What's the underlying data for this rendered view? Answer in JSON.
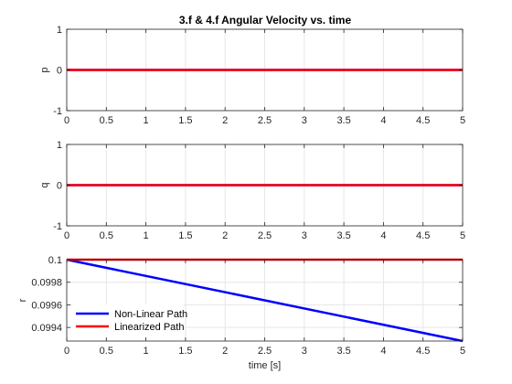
{
  "colors": {
    "background": "#ffffff",
    "axes_frame": "#262626",
    "grid": "#e6e6e6",
    "nonlinear": "#0000ff",
    "linearized": "#ff0000"
  },
  "chart_data": [
    {
      "type": "line",
      "title": "3.f & 4.f Angular Velocity vs. time",
      "xlabel": "",
      "ylabel": "p",
      "xlim": [
        0,
        5
      ],
      "ylim": [
        -1,
        1
      ],
      "xticks": [
        "0",
        "0.5",
        "1",
        "1.5",
        "2",
        "2.5",
        "3",
        "3.5",
        "4",
        "4.5",
        "5"
      ],
      "yticks": [
        "-1",
        "0",
        "1"
      ],
      "grid": true,
      "series": [
        {
          "x": [
            0,
            5
          ],
          "y": [
            0,
            0
          ],
          "color": "#0000ff"
        },
        {
          "x": [
            0,
            5
          ],
          "y": [
            0,
            0
          ],
          "color": "#ff0000"
        }
      ]
    },
    {
      "type": "line",
      "title": "",
      "xlabel": "",
      "ylabel": "q",
      "xlim": [
        0,
        5
      ],
      "ylim": [
        -1,
        1
      ],
      "xticks": [
        "0",
        "0.5",
        "1",
        "1.5",
        "2",
        "2.5",
        "3",
        "3.5",
        "4",
        "4.5",
        "5"
      ],
      "yticks": [
        "-1",
        "0",
        "1"
      ],
      "grid": true,
      "series": [
        {
          "x": [
            0,
            5
          ],
          "y": [
            0,
            0
          ],
          "color": "#0000ff"
        },
        {
          "x": [
            0,
            5
          ],
          "y": [
            0,
            0
          ],
          "color": "#ff0000"
        }
      ]
    },
    {
      "type": "line",
      "title": "",
      "xlabel": "time [s]",
      "ylabel": "r",
      "xlim": [
        0,
        5
      ],
      "ylim": [
        0.09928,
        0.1
      ],
      "xticks": [
        "0",
        "0.5",
        "1",
        "1.5",
        "2",
        "2.5",
        "3",
        "3.5",
        "4",
        "4.5",
        "5"
      ],
      "yticks": [
        "0.0994",
        "0.0996",
        "0.0998",
        "0.1"
      ],
      "ytick_values": [
        0.0994,
        0.0996,
        0.0998,
        0.1
      ],
      "grid": true,
      "legend": "bottom-left",
      "series": [
        {
          "name": "Non-Linear Path",
          "x": [
            0,
            5
          ],
          "y": [
            0.1,
            0.09928
          ],
          "color": "#0000ff"
        },
        {
          "name": "Linearized Path",
          "x": [
            0,
            5
          ],
          "y": [
            0.1,
            0.1
          ],
          "color": "#ff0000"
        }
      ]
    }
  ]
}
